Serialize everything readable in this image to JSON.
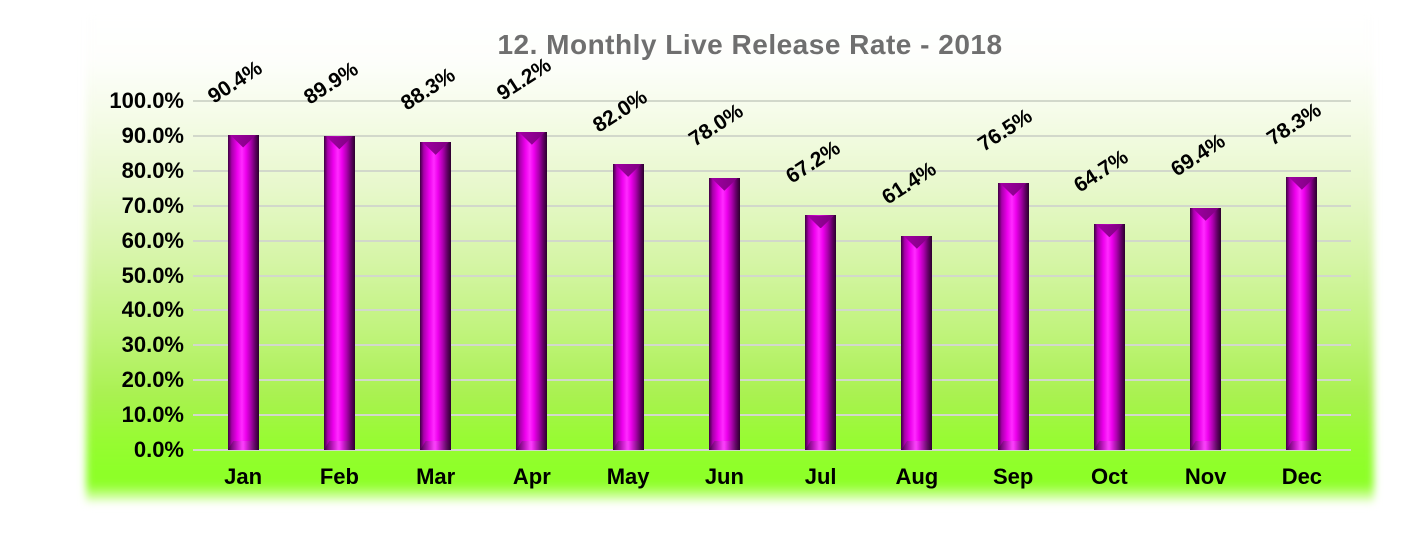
{
  "title": "12. Monthly Live Release Rate - 2018",
  "chart_data": {
    "type": "bar",
    "title": "12. Monthly Live Release Rate - 2018",
    "categories": [
      "Jan",
      "Feb",
      "Mar",
      "Apr",
      "May",
      "Jun",
      "Jul",
      "Aug",
      "Sep",
      "Oct",
      "Nov",
      "Dec"
    ],
    "values": [
      90.4,
      89.9,
      88.3,
      91.2,
      82.0,
      78.0,
      67.2,
      61.4,
      76.5,
      64.7,
      69.4,
      78.3
    ],
    "data_labels": [
      "90.4%",
      "89.9%",
      "88.3%",
      "91.2%",
      "82.0%",
      "78.0%",
      "67.2%",
      "61.4%",
      "76.5%",
      "64.7%",
      "69.4%",
      "78.3%"
    ],
    "xlabel": "",
    "ylabel": "",
    "ylim": [
      0,
      100
    ],
    "ytick_step": 10,
    "ytick_labels": [
      "100.0%",
      "90.0%",
      "80.0%",
      "70.0%",
      "60.0%",
      "50.0%",
      "40.0%",
      "30.0%",
      "20.0%",
      "10.0%",
      "0.0%"
    ],
    "grid": true,
    "legend": false,
    "data_label_rotation_deg": -33,
    "colors": {
      "bar_main": "#ee00ee",
      "bar_highlight": "#ff2bff",
      "bar_shadow_left": "#3c0040",
      "bar_shadow_right": "#2a002c",
      "bar_bevel_dark": "#a400a6",
      "bar_bevel_darker": "#7c007e",
      "background_top": "#ffffff",
      "background_bottom_green": "#8eff28",
      "gridline": "#d2d8cb",
      "title_color": "#6f6f6f",
      "text_color": "#000000"
    }
  }
}
